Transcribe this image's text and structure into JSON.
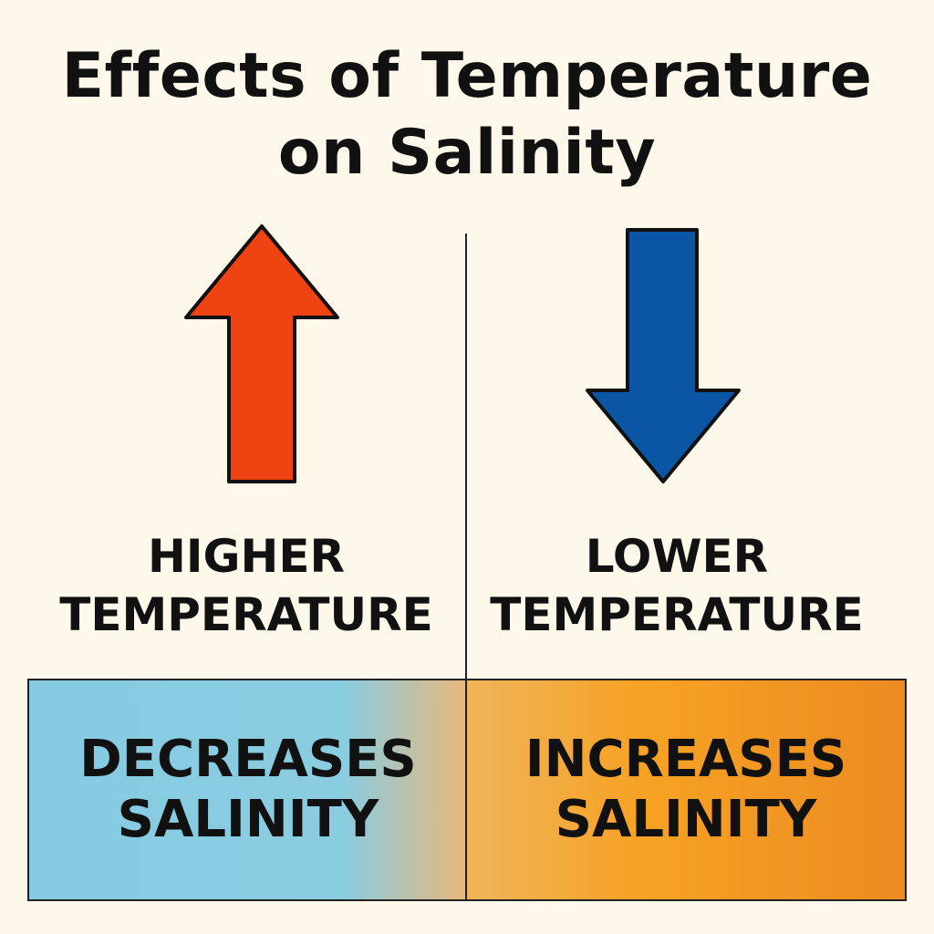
{
  "title": {
    "line1": "Effects of Temperature",
    "line2": "on Salinity"
  },
  "left": {
    "arrow_icon": "arrow-up-icon",
    "arrow_color": "#f04312",
    "label_line1": "HIGHER",
    "label_line2": "TEMPERATURE",
    "effect_line1": "DECREASES",
    "effect_line2": "SALINITY",
    "box_color": "#86cbe2"
  },
  "right": {
    "arrow_icon": "arrow-down-icon",
    "arrow_color": "#0b56a4",
    "label_line1": "LOWER",
    "label_line2": "TEMPERATURE",
    "effect_line1": "INCREASES",
    "effect_line2": "SALINITY",
    "box_color": "#f7a224"
  }
}
